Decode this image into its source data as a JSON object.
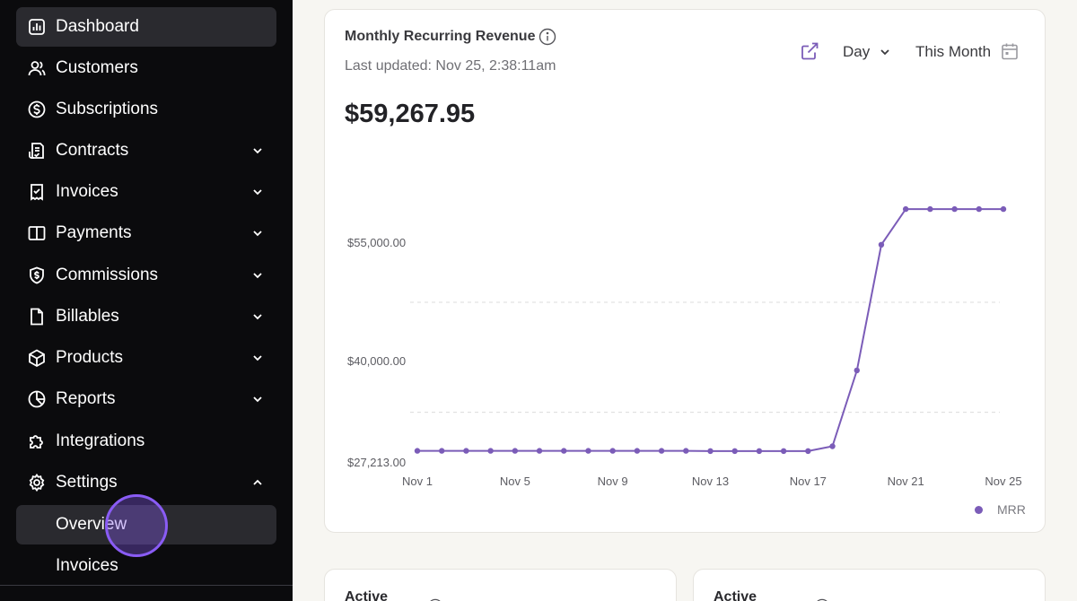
{
  "sidebar": {
    "items": [
      {
        "label": "Dashboard",
        "icon": "dashboard-icon",
        "expandable": false
      },
      {
        "label": "Customers",
        "icon": "users-icon",
        "expandable": false
      },
      {
        "label": "Subscriptions",
        "icon": "dollar-circle-icon",
        "expandable": false
      },
      {
        "label": "Contracts",
        "icon": "contract-icon",
        "expandable": true
      },
      {
        "label": "Invoices",
        "icon": "receipt-icon",
        "expandable": true
      },
      {
        "label": "Payments",
        "icon": "book-icon",
        "expandable": true
      },
      {
        "label": "Commissions",
        "icon": "shield-dollar-icon",
        "expandable": true
      },
      {
        "label": "Billables",
        "icon": "file-icon",
        "expandable": true
      },
      {
        "label": "Products",
        "icon": "box-icon",
        "expandable": true
      },
      {
        "label": "Reports",
        "icon": "pie-chart-icon",
        "expandable": true
      },
      {
        "label": "Integrations",
        "icon": "puzzle-icon",
        "expandable": false
      },
      {
        "label": "Settings",
        "icon": "gear-icon",
        "expandable": true,
        "expanded": true
      }
    ],
    "sub_items": [
      {
        "label": "Overview"
      },
      {
        "label": "Invoices"
      }
    ]
  },
  "card": {
    "title": "Monthly Recurring Revenue",
    "updated": "Last updated: Nov 25, 2:38:11am",
    "value": "$59,267.95",
    "granularity": "Day",
    "range": "This Month",
    "accent": "#7b5cb8"
  },
  "chart_data": {
    "type": "line",
    "x": [
      "Nov 1",
      "Nov 2",
      "Nov 3",
      "Nov 4",
      "Nov 5",
      "Nov 6",
      "Nov 7",
      "Nov 8",
      "Nov 9",
      "Nov 10",
      "Nov 11",
      "Nov 12",
      "Nov 13",
      "Nov 14",
      "Nov 15",
      "Nov 16",
      "Nov 17",
      "Nov 18",
      "Nov 19",
      "Nov 20",
      "Nov 21",
      "Nov 22",
      "Nov 23",
      "Nov 24",
      "Nov 25"
    ],
    "x_ticks": [
      "Nov 1",
      "Nov 5",
      "Nov 9",
      "Nov 13",
      "Nov 17",
      "Nov 21",
      "Nov 25"
    ],
    "y_ticks": [
      {
        "value": 55000,
        "label": "$55,000.00"
      },
      {
        "value": 40000,
        "label": "$40,000.00"
      },
      {
        "value": 27213,
        "label": "$27,213.00"
      }
    ],
    "ylim": [
      27213,
      62000
    ],
    "series": [
      {
        "name": "MRR",
        "color": "#7b5cb8",
        "values": [
          28730,
          28730,
          28730,
          28730,
          28730,
          28730,
          28730,
          28730,
          28730,
          28730,
          28730,
          28730,
          28700,
          28700,
          28700,
          28700,
          28700,
          29310,
          38890,
          54770,
          59270,
          59270,
          59270,
          59270,
          59270
        ]
      }
    ],
    "legend": "bottom-right",
    "grid": true
  },
  "bottom_cards": [
    {
      "title": "Active"
    },
    {
      "title": "Active"
    }
  ]
}
